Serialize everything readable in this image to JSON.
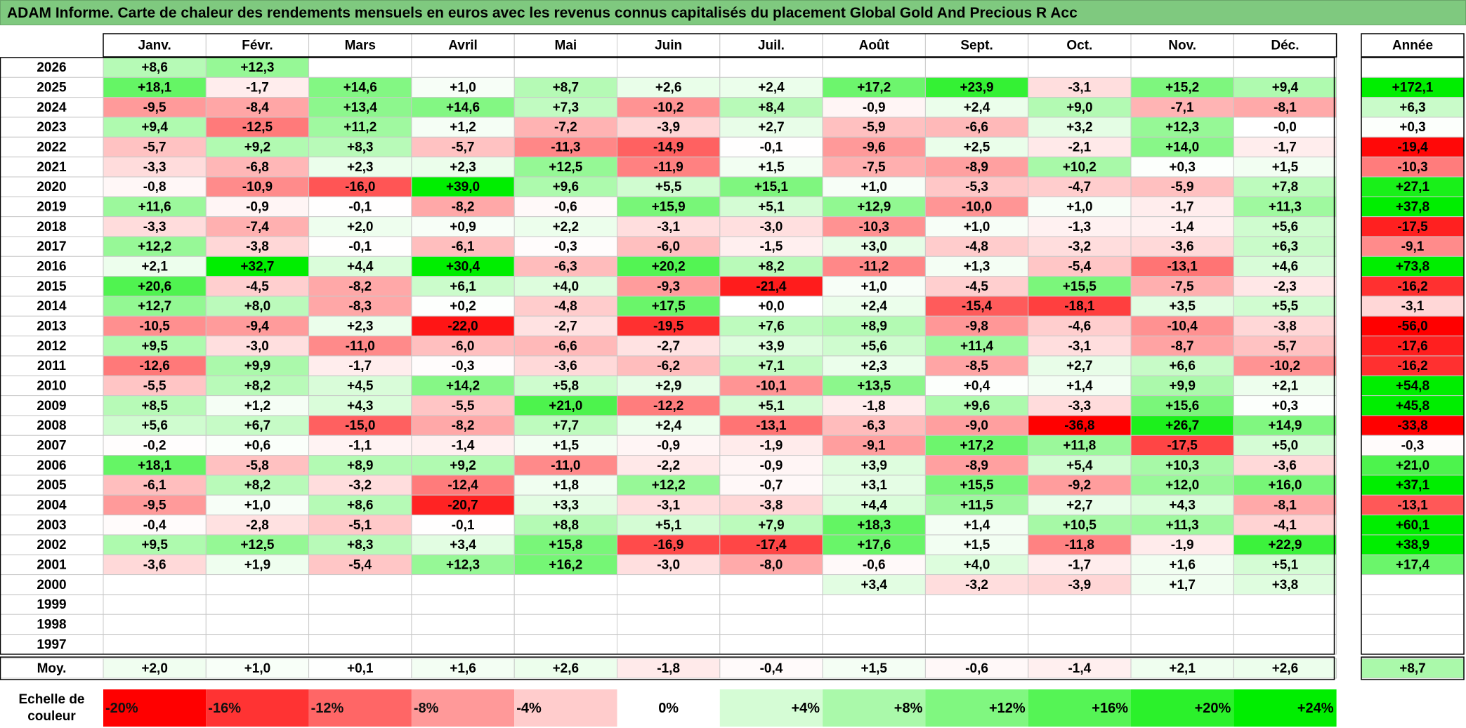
{
  "title": "ADAM Informe. Carte de chaleur des rendements mensuels en euros avec les revenus connus capitalisés du placement Global Gold And Precious R Acc",
  "chart_data": {
    "type": "heatmap",
    "title": "ADAM Informe. Carte de chaleur des rendements mensuels en euros avec les revenus connus capitalisés du placement Global Gold And Precious R Acc",
    "months": [
      "Janv.",
      "Févr.",
      "Mars",
      "Avril",
      "Mai",
      "Juin",
      "Juil.",
      "Août",
      "Sept.",
      "Oct.",
      "Nov.",
      "Déc."
    ],
    "year_header": "Année",
    "rows": [
      {
        "year": "2026",
        "values": [
          "+8,6",
          "+12,3",
          "",
          "",
          "",
          "",
          "",
          "",
          "",
          "",
          "",
          ""
        ],
        "annual": ""
      },
      {
        "year": "2025",
        "values": [
          "+18,1",
          "-1,7",
          "+14,6",
          "+1,0",
          "+8,7",
          "+2,6",
          "+2,4",
          "+17,2",
          "+23,9",
          "-3,1",
          "+15,2",
          "+9,4"
        ],
        "annual": "+172,1"
      },
      {
        "year": "2024",
        "values": [
          "-9,5",
          "-8,4",
          "+13,4",
          "+14,6",
          "+7,3",
          "-10,2",
          "+8,4",
          "-0,9",
          "+2,4",
          "+9,0",
          "-7,1",
          "-8,1"
        ],
        "annual": "+6,3"
      },
      {
        "year": "2023",
        "values": [
          "+9,4",
          "-12,5",
          "+11,2",
          "+1,2",
          "-7,2",
          "-3,9",
          "+2,7",
          "-5,9",
          "-6,6",
          "+3,2",
          "+12,3",
          "-0,0"
        ],
        "annual": "+0,3"
      },
      {
        "year": "2022",
        "values": [
          "-5,7",
          "+9,2",
          "+8,3",
          "-5,7",
          "-11,3",
          "-14,9",
          "-0,1",
          "-9,6",
          "+2,5",
          "-2,1",
          "+14,0",
          "-1,7"
        ],
        "annual": "-19,4"
      },
      {
        "year": "2021",
        "values": [
          "-3,3",
          "-6,8",
          "+2,3",
          "+2,3",
          "+12,5",
          "-11,9",
          "+1,5",
          "-7,5",
          "-8,9",
          "+10,2",
          "+0,3",
          "+1,5"
        ],
        "annual": "-10,3"
      },
      {
        "year": "2020",
        "values": [
          "-0,8",
          "-10,9",
          "-16,0",
          "+39,0",
          "+9,6",
          "+5,5",
          "+15,1",
          "+1,0",
          "-5,3",
          "-4,7",
          "-5,9",
          "+7,8"
        ],
        "annual": "+27,1"
      },
      {
        "year": "2019",
        "values": [
          "+11,6",
          "-0,9",
          "-0,1",
          "-8,2",
          "-0,6",
          "+15,9",
          "+5,1",
          "+12,9",
          "-10,0",
          "+1,0",
          "-1,7",
          "+11,3"
        ],
        "annual": "+37,8"
      },
      {
        "year": "2018",
        "values": [
          "-3,3",
          "-7,4",
          "+2,0",
          "+0,9",
          "+2,2",
          "-3,1",
          "-3,0",
          "-10,3",
          "+1,0",
          "-1,3",
          "-1,4",
          "+5,6"
        ],
        "annual": "-17,5"
      },
      {
        "year": "2017",
        "values": [
          "+12,2",
          "-3,8",
          "-0,1",
          "-6,1",
          "-0,3",
          "-6,0",
          "-1,5",
          "+3,0",
          "-4,8",
          "-3,2",
          "-3,6",
          "+6,3"
        ],
        "annual": "-9,1"
      },
      {
        "year": "2016",
        "values": [
          "+2,1",
          "+32,7",
          "+4,4",
          "+30,4",
          "-6,3",
          "+20,2",
          "+8,2",
          "-11,2",
          "+1,3",
          "-5,4",
          "-13,1",
          "+4,6"
        ],
        "annual": "+73,8"
      },
      {
        "year": "2015",
        "values": [
          "+20,6",
          "-4,5",
          "-8,2",
          "+6,1",
          "+4,0",
          "-9,3",
          "-21,4",
          "+1,0",
          "-4,5",
          "+15,5",
          "-7,5",
          "-2,3"
        ],
        "annual": "-16,2"
      },
      {
        "year": "2014",
        "values": [
          "+12,7",
          "+8,0",
          "-8,3",
          "+0,2",
          "-4,8",
          "+17,5",
          "+0,0",
          "+2,4",
          "-15,4",
          "-18,1",
          "+3,5",
          "+5,5"
        ],
        "annual": "-3,1"
      },
      {
        "year": "2013",
        "values": [
          "-10,5",
          "-9,4",
          "+2,3",
          "-22,0",
          "-2,7",
          "-19,5",
          "+7,6",
          "+8,9",
          "-9,8",
          "-4,6",
          "-10,4",
          "-3,8"
        ],
        "annual": "-56,0"
      },
      {
        "year": "2012",
        "values": [
          "+9,5",
          "-3,0",
          "-11,0",
          "-6,0",
          "-6,6",
          "-2,7",
          "+3,9",
          "+5,6",
          "+11,4",
          "-3,1",
          "-8,7",
          "-5,7"
        ],
        "annual": "-17,6"
      },
      {
        "year": "2011",
        "values": [
          "-12,6",
          "+9,9",
          "-1,7",
          "-0,3",
          "-3,6",
          "-6,2",
          "+7,1",
          "+2,3",
          "-8,5",
          "+2,7",
          "+6,6",
          "-10,2"
        ],
        "annual": "-16,2"
      },
      {
        "year": "2010",
        "values": [
          "-5,5",
          "+8,2",
          "+4,5",
          "+14,2",
          "+5,8",
          "+2,9",
          "-10,1",
          "+13,5",
          "+0,4",
          "+1,4",
          "+9,9",
          "+2,1"
        ],
        "annual": "+54,8"
      },
      {
        "year": "2009",
        "values": [
          "+8,5",
          "+1,2",
          "+4,3",
          "-5,5",
          "+21,0",
          "-12,2",
          "+5,1",
          "-1,8",
          "+9,6",
          "-3,3",
          "+15,6",
          "+0,3"
        ],
        "annual": "+45,8"
      },
      {
        "year": "2008",
        "values": [
          "+5,6",
          "+6,7",
          "-15,0",
          "-8,2",
          "+7,7",
          "+2,4",
          "-13,1",
          "-6,3",
          "-9,0",
          "-36,8",
          "+26,7",
          "+14,9"
        ],
        "annual": "-33,8"
      },
      {
        "year": "2007",
        "values": [
          "-0,2",
          "+0,6",
          "-1,1",
          "-1,4",
          "+1,5",
          "-0,9",
          "-1,9",
          "-9,1",
          "+17,2",
          "+11,8",
          "-17,5",
          "+5,0"
        ],
        "annual": "-0,3"
      },
      {
        "year": "2006",
        "values": [
          "+18,1",
          "-5,8",
          "+8,9",
          "+9,2",
          "-11,0",
          "-2,2",
          "-0,9",
          "+3,9",
          "-8,9",
          "+5,4",
          "+10,3",
          "-3,6"
        ],
        "annual": "+21,0"
      },
      {
        "year": "2005",
        "values": [
          "-6,1",
          "+8,2",
          "-3,2",
          "-12,4",
          "+1,8",
          "+12,2",
          "-0,7",
          "+3,1",
          "+15,5",
          "-9,2",
          "+12,0",
          "+16,0"
        ],
        "annual": "+37,1"
      },
      {
        "year": "2004",
        "values": [
          "-9,5",
          "+1,0",
          "+8,6",
          "-20,7",
          "+3,3",
          "-3,1",
          "-3,8",
          "+4,4",
          "+11,5",
          "+2,7",
          "+4,3",
          "-8,1"
        ],
        "annual": "-13,1"
      },
      {
        "year": "2003",
        "values": [
          "-0,4",
          "-2,8",
          "-5,1",
          "-0,1",
          "+8,8",
          "+5,1",
          "+7,9",
          "+18,3",
          "+1,4",
          "+10,5",
          "+11,3",
          "-4,1"
        ],
        "annual": "+60,1"
      },
      {
        "year": "2002",
        "values": [
          "+9,5",
          "+12,5",
          "+8,3",
          "+3,4",
          "+15,8",
          "-16,9",
          "-17,4",
          "+17,6",
          "+1,5",
          "-11,8",
          "-1,9",
          "+22,9"
        ],
        "annual": "+38,9"
      },
      {
        "year": "2001",
        "values": [
          "-3,6",
          "+1,9",
          "-5,4",
          "+12,3",
          "+16,2",
          "-3,0",
          "-8,0",
          "-0,6",
          "+4,0",
          "-1,7",
          "+1,6",
          "+5,1"
        ],
        "annual": "+17,4"
      },
      {
        "year": "2000",
        "values": [
          "",
          "",
          "",
          "",
          "",
          "",
          "",
          "+3,4",
          "-3,2",
          "-3,9",
          "+1,7",
          "+3,8"
        ],
        "annual": ""
      },
      {
        "year": "1999",
        "values": [
          "",
          "",
          "",
          "",
          "",
          "",
          "",
          "",
          "",
          "",
          "",
          ""
        ],
        "annual": ""
      },
      {
        "year": "1998",
        "values": [
          "",
          "",
          "",
          "",
          "",
          "",
          "",
          "",
          "",
          "",
          "",
          ""
        ],
        "annual": ""
      },
      {
        "year": "1997",
        "values": [
          "",
          "",
          "",
          "",
          "",
          "",
          "",
          "",
          "",
          "",
          "",
          ""
        ],
        "annual": ""
      }
    ],
    "average": {
      "label": "Moy.",
      "values": [
        "+2,0",
        "+1,0",
        "+0,1",
        "+1,6",
        "+2,6",
        "-1,8",
        "-0,4",
        "+1,5",
        "-0,6",
        "-1,4",
        "+2,1",
        "+2,6"
      ],
      "annual": "+8,7"
    },
    "color_scale": {
      "label_line1": "Echelle de",
      "label_line2": "couleur",
      "stops": [
        "-20%",
        "-16%",
        "-12%",
        "-8%",
        "-4%",
        "0%",
        "+4%",
        "+8%",
        "+12%",
        "+16%",
        "+20%",
        "+24%"
      ],
      "stop_values": [
        -20,
        -16,
        -12,
        -8,
        -4,
        0,
        4,
        8,
        12,
        16,
        20,
        24
      ],
      "negative_color": "#ff0000",
      "neutral_color": "#ffffff",
      "positive_color": "#00ee00"
    }
  }
}
